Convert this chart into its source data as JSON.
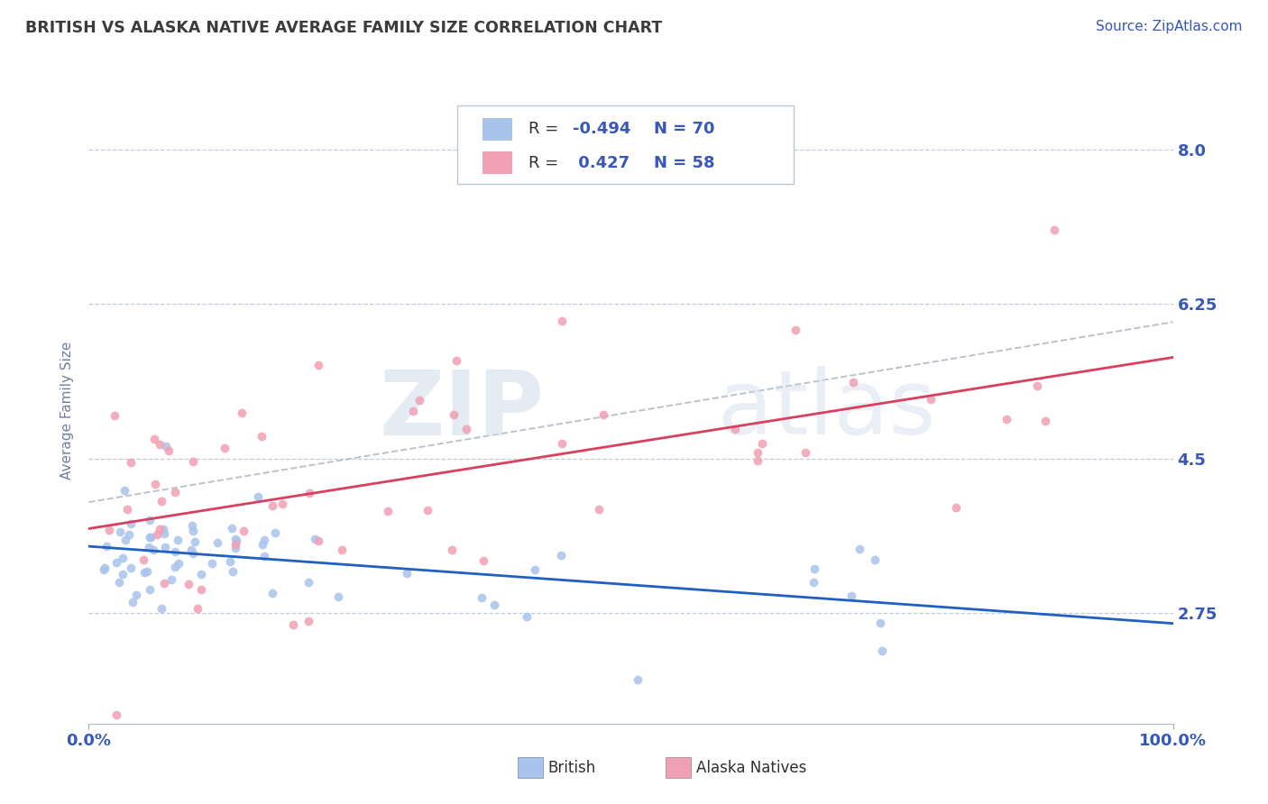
{
  "title": "BRITISH VS ALASKA NATIVE AVERAGE FAMILY SIZE CORRELATION CHART",
  "source": "Source: ZipAtlas.com",
  "ylabel": "Average Family Size",
  "yticks": [
    2.75,
    4.5,
    6.25,
    8.0
  ],
  "xmin": 0.0,
  "xmax": 100.0,
  "ymin": 1.5,
  "ymax": 8.6,
  "british_color": "#a8c4ec",
  "alaska_color": "#f0a0b4",
  "british_line_color": "#2060c0",
  "alaska_line_color": "#d84060",
  "dashed_line_color": "#b0b8c0",
  "grid_color": "#c0ccd8",
  "axis_color": "#909090",
  "label_color": "#3858b8",
  "title_color": "#3c3c3c",
  "bg_color": "#ffffff",
  "legend_R_british": "-0.494",
  "legend_N_british": "70",
  "legend_R_alaska": "0.427",
  "legend_N_alaska": "58",
  "legend_label_british": "British",
  "legend_label_alaska": "Alaska Natives",
  "watermark_zip": "ZIP",
  "watermark_atlas": "atlas"
}
